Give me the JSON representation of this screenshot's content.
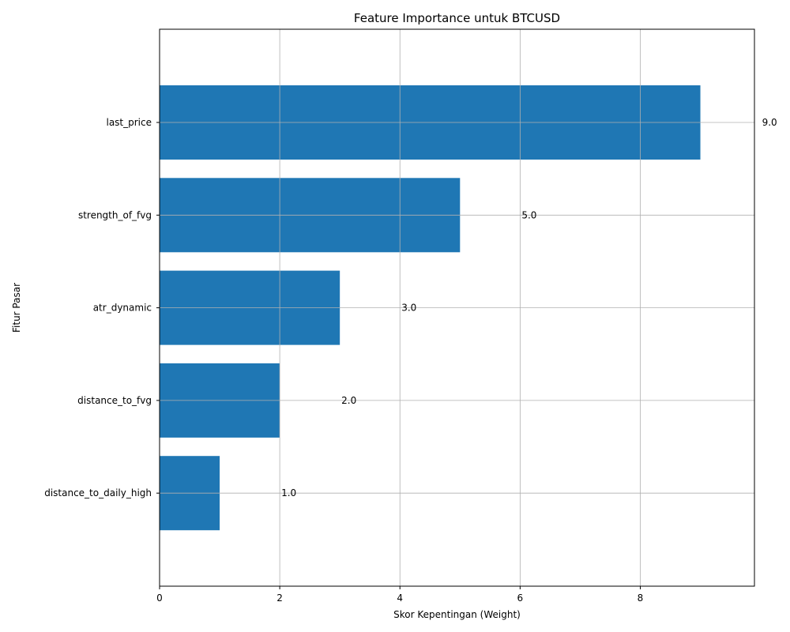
{
  "chart_data": {
    "type": "bar",
    "orientation": "horizontal",
    "title": "Feature Importance untuk BTCUSD",
    "xlabel": "Skor Kepentingan (Weight)",
    "ylabel": "Fitur Pasar",
    "categories": [
      "last_price",
      "strength_of_fvg",
      "atr_dynamic",
      "distance_to_fvg",
      "distance_to_daily_high"
    ],
    "values": [
      9.0,
      5.0,
      3.0,
      2.0,
      1.0
    ],
    "data_labels": [
      "9.0",
      "5.0",
      "3.0",
      "2.0",
      "1.0"
    ],
    "xlim": [
      0,
      9.9
    ],
    "xticks": [
      0,
      2,
      4,
      6,
      8
    ],
    "xtick_labels": [
      "0",
      "2",
      "4",
      "6",
      "8"
    ],
    "grid": true,
    "bar_color": "#1f77b4",
    "grid_color": "#b0b0b0"
  }
}
